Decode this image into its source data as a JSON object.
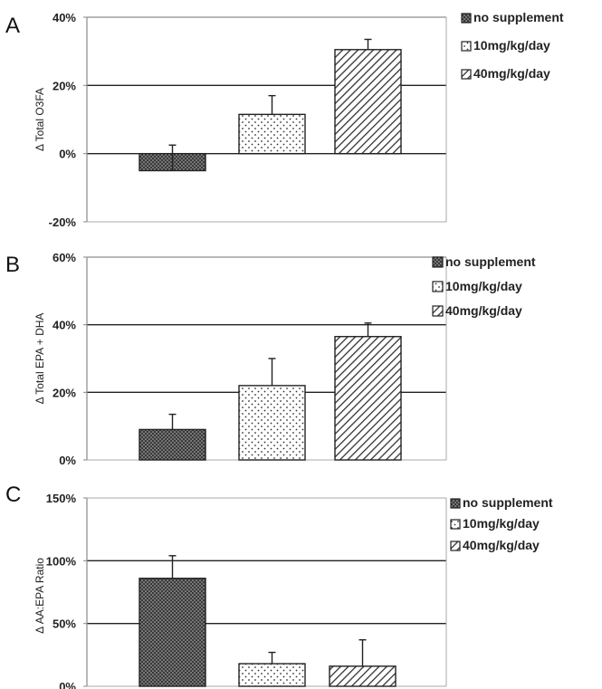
{
  "figure": {
    "colors": {
      "dark": "#2b2b2b",
      "text": "#222222",
      "grid": "#222222"
    },
    "icons": {
      "errorbar": "errorbar-icon"
    }
  },
  "chart_data": [
    {
      "panel": "A",
      "type": "bar",
      "categories": [
        "no supplement",
        "10mg/kg/day",
        "40mg/kg/day"
      ],
      "values": [
        -5,
        11.5,
        30.5
      ],
      "errors": [
        7.5,
        5.5,
        3.0
      ],
      "ylabel": "Δ Total O3FA",
      "ylim": [
        -20,
        40
      ],
      "yticks": [
        -20,
        0,
        20,
        40
      ],
      "ytick_labels": [
        "-20%",
        "0%",
        "20%",
        "40%"
      ],
      "gridlines": [
        0,
        20,
        40
      ],
      "legend": [
        "no supplement",
        "10mg/kg/day",
        "40mg/kg/day"
      ],
      "legend_placement": "right",
      "patterns": [
        "dense-dots",
        "sparse-dots",
        "diagonal-hatch"
      ]
    },
    {
      "panel": "B",
      "type": "bar",
      "categories": [
        "no supplement",
        "10mg/kg/day",
        "40mg/kg/day"
      ],
      "values": [
        9,
        22,
        36.5
      ],
      "errors": [
        4.5,
        8.0,
        4.0
      ],
      "ylabel": "Δ Total EPA + DHA",
      "ylim": [
        0,
        60
      ],
      "yticks": [
        0,
        20,
        40,
        60
      ],
      "ytick_labels": [
        "0%",
        "20%",
        "40%",
        "60%"
      ],
      "gridlines": [
        20,
        40,
        60
      ],
      "legend": [
        "no supplement",
        "10mg/kg/day",
        "40mg/kg/day"
      ],
      "legend_placement": "right",
      "patterns": [
        "dense-dots",
        "sparse-dots",
        "diagonal-hatch"
      ]
    },
    {
      "panel": "C",
      "type": "bar",
      "categories": [
        "no supplement",
        "10mg/kg/day",
        "40mg/kg/day"
      ],
      "values": [
        86,
        18,
        16
      ],
      "errors": [
        18,
        9,
        21
      ],
      "ylabel": "Δ AA:EPA Ratio",
      "ylim": [
        0,
        150
      ],
      "yticks": [
        0,
        50,
        100,
        150
      ],
      "ytick_labels": [
        "0%",
        "50%",
        "100%",
        "150%"
      ],
      "gridlines": [
        50,
        100
      ],
      "legend": [
        "no supplement",
        "10mg/kg/day",
        "40mg/kg/day"
      ],
      "legend_placement": "right",
      "patterns": [
        "dense-dots",
        "sparse-dots",
        "diagonal-hatch"
      ]
    }
  ]
}
